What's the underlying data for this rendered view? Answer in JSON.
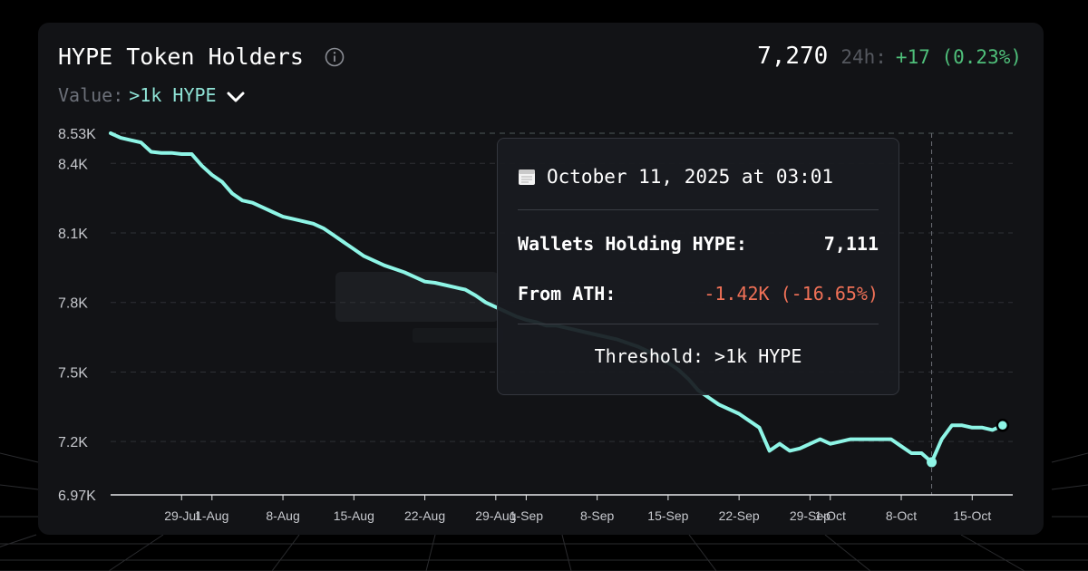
{
  "header": {
    "title": "HYPE Token Holders",
    "count": "7,270",
    "change_label": "24h:",
    "change_value": "+17 (0.23%)"
  },
  "filter": {
    "label": "Value:",
    "selected": ">1k HYPE"
  },
  "tooltip": {
    "date": "October 11, 2025 at 03:01",
    "wallets_label": "Wallets Holding HYPE:",
    "wallets_value": "7,111",
    "ath_label": "From ATH:",
    "ath_value": "-1.42K (-16.65%)",
    "threshold": "Threshold: >1k HYPE"
  },
  "colors": {
    "line": "#8ef5e6",
    "background": "#121316",
    "positive": "#4fbf7a",
    "negative": "#f07157"
  },
  "chart_data": {
    "type": "line",
    "title": "HYPE Token Holders",
    "xlabel": "",
    "ylabel": "",
    "x_ticks": [
      "29-Jul",
      "1-Aug",
      "8-Aug",
      "15-Aug",
      "22-Aug",
      "29-Aug",
      "1-Sep",
      "8-Sep",
      "15-Sep",
      "22-Sep",
      "29-Sep",
      "1-Oct",
      "8-Oct",
      "15-Oct"
    ],
    "y_ticks": [
      "6.97K",
      "7.2K",
      "7.5K",
      "7.8K",
      "8.1K",
      "8.4K",
      "8.53K"
    ],
    "y_tick_values": [
      6970,
      7200,
      7500,
      7800,
      8100,
      8400,
      8530
    ],
    "ylim": [
      6970,
      8530
    ],
    "xlim": [
      "2025-07-22",
      "2025-10-19"
    ],
    "grid": "horizontal dashed",
    "series": [
      {
        "x": [
          "2025-07-22",
          "2025-07-23",
          "2025-07-24",
          "2025-07-25",
          "2025-07-26",
          "2025-07-27",
          "2025-07-28",
          "2025-07-29",
          "2025-07-30",
          "2025-07-31",
          "2025-08-01",
          "2025-08-02",
          "2025-08-03",
          "2025-08-04",
          "2025-08-05",
          "2025-08-06",
          "2025-08-07",
          "2025-08-08",
          "2025-08-09",
          "2025-08-10",
          "2025-08-11",
          "2025-08-12",
          "2025-08-13",
          "2025-08-14",
          "2025-08-15",
          "2025-08-16",
          "2025-08-17",
          "2025-08-18",
          "2025-08-19",
          "2025-08-20",
          "2025-08-21",
          "2025-08-22",
          "2025-08-23",
          "2025-08-24",
          "2025-08-25",
          "2025-08-26",
          "2025-08-27",
          "2025-08-28",
          "2025-08-29",
          "2025-08-30",
          "2025-08-31",
          "2025-09-01",
          "2025-09-02",
          "2025-09-03",
          "2025-09-04",
          "2025-09-05",
          "2025-09-06",
          "2025-09-07",
          "2025-09-08",
          "2025-09-09",
          "2025-09-10",
          "2025-09-11",
          "2025-09-12",
          "2025-09-13",
          "2025-09-14",
          "2025-09-15",
          "2025-09-16",
          "2025-09-17",
          "2025-09-18",
          "2025-09-19",
          "2025-09-20",
          "2025-09-21",
          "2025-09-22",
          "2025-09-23",
          "2025-09-24",
          "2025-09-25",
          "2025-09-26",
          "2025-09-27",
          "2025-09-28",
          "2025-09-29",
          "2025-09-30",
          "2025-10-01",
          "2025-10-02",
          "2025-10-03",
          "2025-10-04",
          "2025-10-05",
          "2025-10-06",
          "2025-10-07",
          "2025-10-08",
          "2025-10-09",
          "2025-10-10",
          "2025-10-11",
          "2025-10-12",
          "2025-10-13",
          "2025-10-14",
          "2025-10-15",
          "2025-10-16",
          "2025-10-17",
          "2025-10-18"
        ],
        "values": [
          8530,
          8510,
          8500,
          8490,
          8450,
          8445,
          8445,
          8440,
          8440,
          8390,
          8350,
          8320,
          8270,
          8240,
          8230,
          8210,
          8190,
          8170,
          8160,
          8150,
          8140,
          8120,
          8090,
          8060,
          8030,
          8000,
          7980,
          7960,
          7945,
          7930,
          7910,
          7890,
          7885,
          7875,
          7865,
          7855,
          7830,
          7800,
          7780,
          7760,
          7740,
          7725,
          7715,
          7700,
          7700,
          7690,
          7680,
          7670,
          7660,
          7650,
          7640,
          7625,
          7610,
          7590,
          7570,
          7540,
          7510,
          7470,
          7420,
          7390,
          7360,
          7340,
          7320,
          7290,
          7260,
          7160,
          7190,
          7160,
          7170,
          7190,
          7210,
          7190,
          7200,
          7210,
          7210,
          7210,
          7210,
          7210,
          7180,
          7150,
          7150,
          7111,
          7210,
          7270,
          7270,
          7260,
          7260,
          7250,
          7270
        ]
      }
    ],
    "highlight": {
      "x": "2025-10-11",
      "y": 7111
    },
    "last_point": {
      "x": "2025-10-18",
      "y": 7270
    },
    "reference_line_y": 8530
  }
}
